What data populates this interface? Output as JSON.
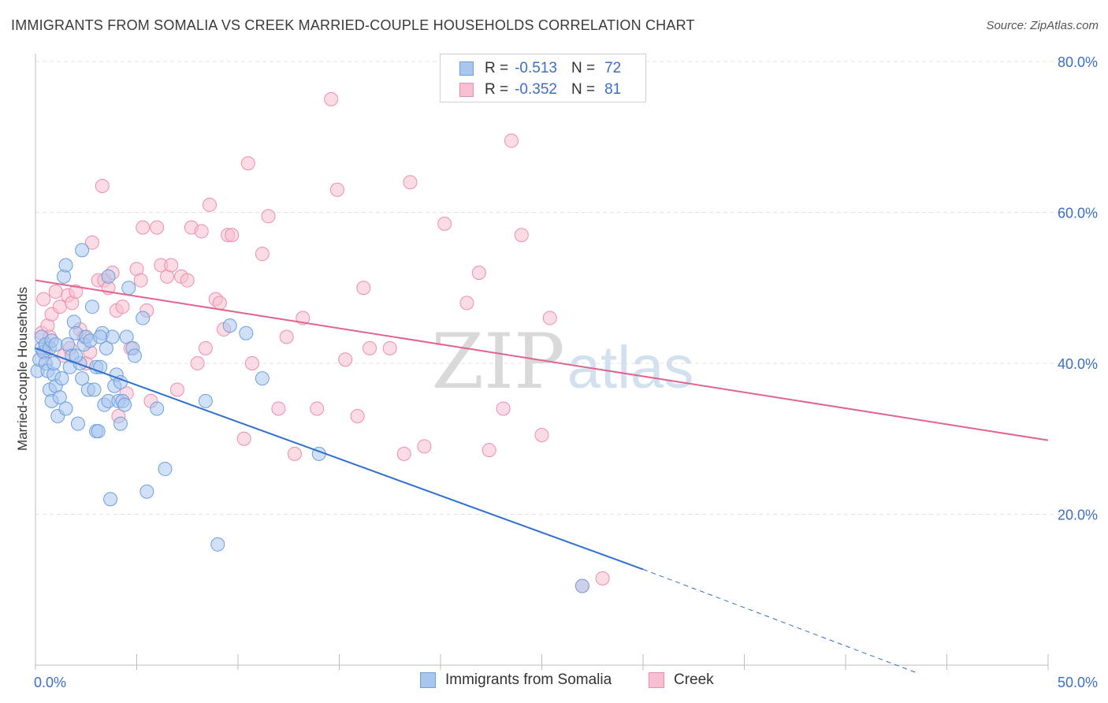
{
  "header": {
    "title": "IMMIGRANTS FROM SOMALIA VS CREEK MARRIED-COUPLE HOUSEHOLDS CORRELATION CHART",
    "source": "Source: ZipAtlas.com"
  },
  "stats": {
    "somalia": {
      "r_label": "R =",
      "r_value": "-0.513",
      "n_label": "N =",
      "n_value": "72"
    },
    "creek": {
      "r_label": "R =",
      "r_value": "-0.352",
      "n_label": "N =",
      "n_value": "81"
    }
  },
  "legend": {
    "somalia": "Immigrants from Somalia",
    "creek": "Creek"
  },
  "colors": {
    "somalia_fill": "#a9c6ee",
    "somalia_stroke": "#6f9fdc",
    "somalia_line": "#2f6fd0",
    "creek_fill": "#f7bfd0",
    "creek_stroke": "#ec8fac",
    "creek_line": "#e0648c",
    "axis_label": "#3b6fc4",
    "grid": "#e3e3e3",
    "watermark": "#d6d6d6"
  },
  "chart_data": {
    "type": "scatter",
    "title": "IMMIGRANTS FROM SOMALIA VS CREEK MARRIED-COUPLE HOUSEHOLDS CORRELATION CHART",
    "xlabel": "",
    "ylabel": "Married-couple Households",
    "xlim": [
      0,
      50
    ],
    "ylim": [
      0,
      83
    ],
    "x_tick_labels": [
      {
        "value": 0,
        "label": "0.0%"
      },
      {
        "value": 50,
        "label": "50.0%"
      }
    ],
    "y_tick_labels": [
      {
        "value": 20,
        "label": "20.0%"
      },
      {
        "value": 40,
        "label": "40.0%"
      },
      {
        "value": 60,
        "label": "60.0%"
      },
      {
        "value": 80,
        "label": "80.0%"
      }
    ],
    "grid": true,
    "watermark": {
      "zip": "ZIP",
      "atlas": "atlas"
    },
    "series": [
      {
        "name": "Immigrants from Somalia",
        "color": "#a9c6ee",
        "points": [
          [
            0.1,
            39.0
          ],
          [
            0.2,
            40.5
          ],
          [
            0.3,
            42.0
          ],
          [
            0.3,
            43.5
          ],
          [
            0.4,
            41.5
          ],
          [
            0.5,
            42.5
          ],
          [
            0.5,
            40.0
          ],
          [
            0.6,
            39.0
          ],
          [
            0.7,
            42.0
          ],
          [
            0.7,
            36.5
          ],
          [
            0.8,
            43.0
          ],
          [
            0.8,
            35.0
          ],
          [
            0.9,
            38.5
          ],
          [
            0.9,
            40.0
          ],
          [
            1.0,
            42.5
          ],
          [
            1.0,
            37.0
          ],
          [
            1.1,
            33.0
          ],
          [
            1.2,
            35.5
          ],
          [
            1.3,
            38.0
          ],
          [
            1.4,
            51.5
          ],
          [
            1.5,
            53.0
          ],
          [
            1.5,
            34.0
          ],
          [
            1.6,
            42.5
          ],
          [
            1.7,
            39.5
          ],
          [
            1.8,
            41.0
          ],
          [
            1.9,
            45.5
          ],
          [
            2.0,
            44.0
          ],
          [
            2.1,
            32.0
          ],
          [
            2.2,
            40.0
          ],
          [
            2.3,
            38.0
          ],
          [
            2.3,
            55.0
          ],
          [
            2.4,
            42.5
          ],
          [
            2.5,
            43.5
          ],
          [
            2.6,
            36.5
          ],
          [
            2.7,
            43.0
          ],
          [
            2.8,
            47.5
          ],
          [
            2.9,
            36.5
          ],
          [
            3.0,
            31.0
          ],
          [
            3.0,
            39.5
          ],
          [
            3.1,
            31.0
          ],
          [
            3.2,
            39.5
          ],
          [
            3.3,
            44.0
          ],
          [
            3.4,
            34.5
          ],
          [
            3.5,
            42.0
          ],
          [
            3.6,
            35.0
          ],
          [
            3.6,
            51.5
          ],
          [
            3.7,
            22.0
          ],
          [
            3.8,
            43.5
          ],
          [
            3.9,
            37.0
          ],
          [
            4.0,
            38.5
          ],
          [
            4.1,
            35.0
          ],
          [
            4.2,
            32.0
          ],
          [
            4.2,
            37.5
          ],
          [
            4.3,
            35.0
          ],
          [
            4.4,
            34.5
          ],
          [
            4.5,
            43.5
          ],
          [
            4.6,
            50.0
          ],
          [
            4.8,
            42.0
          ],
          [
            4.9,
            41.0
          ],
          [
            5.3,
            46.0
          ],
          [
            5.5,
            23.0
          ],
          [
            6.0,
            34.0
          ],
          [
            6.4,
            26.0
          ],
          [
            8.4,
            35.0
          ],
          [
            9.0,
            16.0
          ],
          [
            9.6,
            45.0
          ],
          [
            10.4,
            44.0
          ],
          [
            11.2,
            38.0
          ],
          [
            14.0,
            28.0
          ],
          [
            27.0,
            10.5
          ],
          [
            3.2,
            43.5
          ],
          [
            2.0,
            41.0
          ]
        ]
      },
      {
        "name": "Creek",
        "color": "#f7bfd0",
        "points": [
          [
            0.3,
            44.0
          ],
          [
            0.4,
            48.5
          ],
          [
            0.5,
            41.5
          ],
          [
            0.6,
            45.0
          ],
          [
            0.7,
            43.5
          ],
          [
            0.8,
            46.5
          ],
          [
            1.0,
            49.5
          ],
          [
            1.2,
            47.5
          ],
          [
            1.4,
            41.0
          ],
          [
            1.6,
            49.0
          ],
          [
            1.7,
            42.0
          ],
          [
            1.8,
            48.0
          ],
          [
            2.0,
            49.5
          ],
          [
            2.2,
            44.5
          ],
          [
            2.4,
            43.5
          ],
          [
            2.5,
            40.0
          ],
          [
            2.7,
            41.5
          ],
          [
            2.8,
            56.0
          ],
          [
            3.1,
            51.0
          ],
          [
            3.3,
            63.5
          ],
          [
            3.4,
            51.0
          ],
          [
            3.6,
            50.0
          ],
          [
            3.8,
            52.0
          ],
          [
            4.0,
            47.0
          ],
          [
            4.1,
            33.0
          ],
          [
            4.3,
            47.5
          ],
          [
            4.5,
            36.0
          ],
          [
            4.7,
            42.0
          ],
          [
            5.0,
            52.5
          ],
          [
            5.2,
            51.0
          ],
          [
            5.3,
            58.0
          ],
          [
            5.5,
            47.0
          ],
          [
            5.7,
            35.0
          ],
          [
            6.0,
            58.0
          ],
          [
            6.2,
            53.0
          ],
          [
            6.5,
            51.5
          ],
          [
            6.7,
            53.0
          ],
          [
            7.0,
            36.5
          ],
          [
            7.2,
            51.5
          ],
          [
            7.5,
            51.0
          ],
          [
            7.7,
            58.0
          ],
          [
            8.0,
            40.0
          ],
          [
            8.2,
            57.5
          ],
          [
            8.4,
            42.0
          ],
          [
            8.6,
            61.0
          ],
          [
            8.9,
            48.5
          ],
          [
            9.1,
            48.0
          ],
          [
            9.3,
            44.5
          ],
          [
            9.5,
            57.0
          ],
          [
            9.7,
            57.0
          ],
          [
            10.3,
            30.0
          ],
          [
            10.5,
            66.5
          ],
          [
            10.7,
            40.0
          ],
          [
            11.2,
            54.5
          ],
          [
            11.5,
            59.5
          ],
          [
            12.0,
            34.0
          ],
          [
            12.4,
            43.5
          ],
          [
            12.8,
            28.0
          ],
          [
            13.2,
            46.0
          ],
          [
            13.9,
            34.0
          ],
          [
            14.6,
            75.0
          ],
          [
            14.9,
            63.0
          ],
          [
            15.3,
            40.5
          ],
          [
            15.9,
            33.0
          ],
          [
            16.2,
            50.0
          ],
          [
            16.5,
            42.0
          ],
          [
            17.5,
            42.0
          ],
          [
            18.2,
            28.0
          ],
          [
            18.5,
            64.0
          ],
          [
            19.2,
            29.0
          ],
          [
            20.2,
            58.5
          ],
          [
            21.3,
            48.0
          ],
          [
            21.9,
            52.0
          ],
          [
            22.4,
            28.5
          ],
          [
            23.1,
            34.0
          ],
          [
            23.5,
            69.5
          ],
          [
            24.0,
            57.0
          ],
          [
            25.0,
            30.5
          ],
          [
            25.4,
            46.0
          ],
          [
            27.0,
            10.5
          ],
          [
            28.0,
            11.5
          ]
        ]
      }
    ],
    "trendlines": [
      {
        "series": "Immigrants from Somalia",
        "x": [
          0,
          30
        ],
        "y": [
          42.0,
          12.7
        ],
        "dashed_to": [
          43.5,
          -1.0
        ]
      },
      {
        "series": "Creek",
        "x": [
          0,
          50
        ],
        "y": [
          51.0,
          29.8
        ]
      }
    ]
  }
}
